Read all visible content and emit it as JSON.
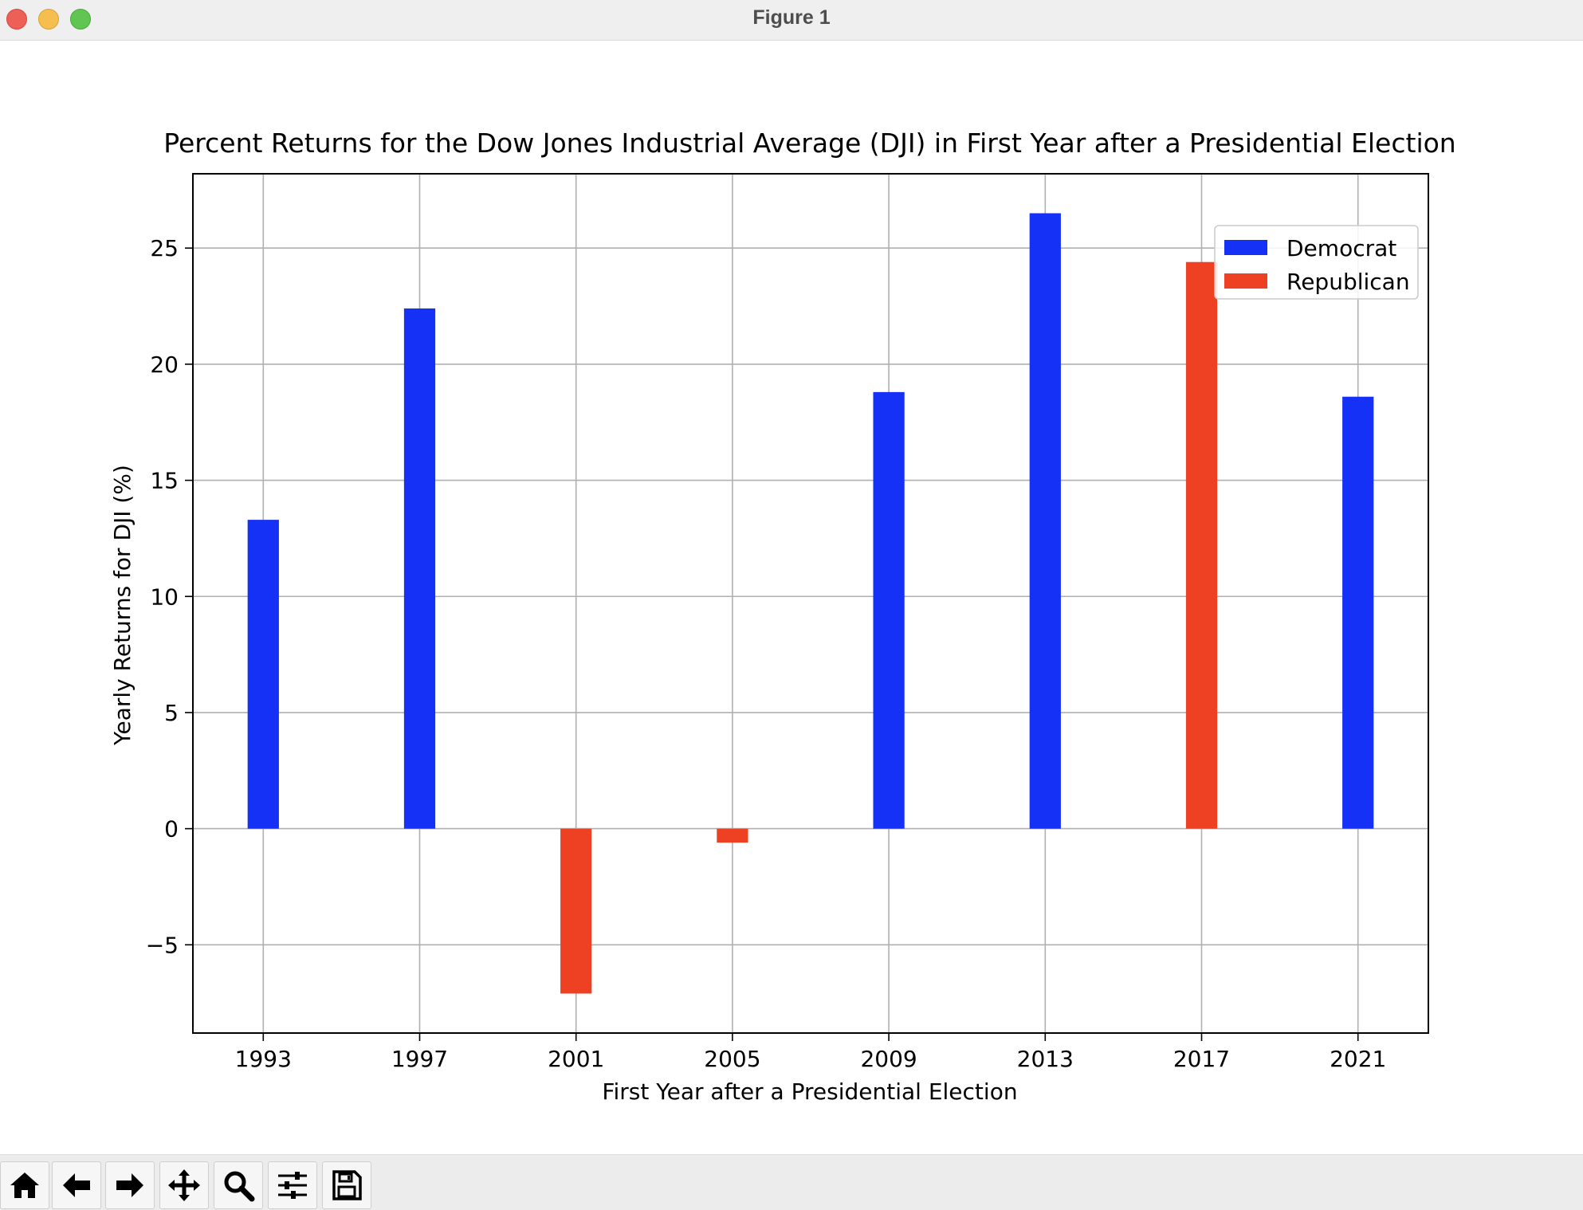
{
  "window": {
    "title": "Figure 1"
  },
  "toolbar": {
    "buttons": [
      {
        "name": "home-button",
        "icon": "home-icon"
      },
      {
        "name": "back-button",
        "icon": "arrow-left-icon"
      },
      {
        "name": "forward-button",
        "icon": "arrow-right-icon"
      },
      {
        "name": "pan-button",
        "icon": "move-icon"
      },
      {
        "name": "zoom-button",
        "icon": "magnifier-icon"
      },
      {
        "name": "configure-subplots-button",
        "icon": "sliders-icon"
      },
      {
        "name": "save-button",
        "icon": "floppy-disk-icon"
      }
    ]
  },
  "colors": {
    "democrat": "#1431f5",
    "republican": "#ee4123"
  },
  "chart_data": {
    "type": "bar",
    "title": "Percent Returns for the Dow Jones Industrial Average (DJI) in First Year after a Presidential Election",
    "xlabel": "First Year after a Presidential Election",
    "ylabel": "Yearly Returns for DJI (%)",
    "categories": [
      "1993",
      "1997",
      "2001",
      "2005",
      "2009",
      "2013",
      "2017",
      "2021"
    ],
    "values": [
      13.3,
      22.4,
      -7.1,
      -0.6,
      18.8,
      26.5,
      24.4,
      18.6
    ],
    "party": [
      "Democrat",
      "Democrat",
      "Republican",
      "Republican",
      "Democrat",
      "Democrat",
      "Republican",
      "Democrat"
    ],
    "series": [
      {
        "name": "Democrat",
        "color": "#1431f5"
      },
      {
        "name": "Republican",
        "color": "#ee4123"
      }
    ],
    "xlim": [
      1991.2,
      2022.8
    ],
    "ylim": [
      -8.8,
      28.2
    ],
    "yticks": [
      -5,
      0,
      5,
      10,
      15,
      20,
      25
    ],
    "ytick_labels": [
      "−5",
      "0",
      "5",
      "10",
      "15",
      "20",
      "25"
    ],
    "bar_width_years": 0.8,
    "grid": true,
    "legend": "top-right"
  }
}
